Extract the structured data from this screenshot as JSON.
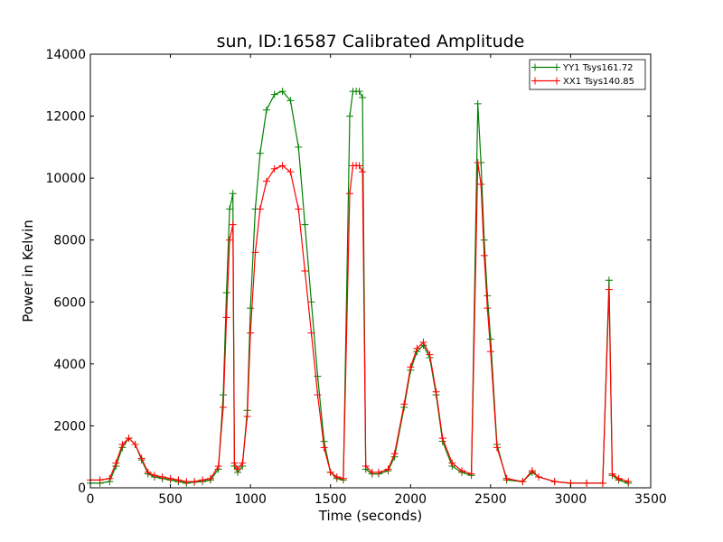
{
  "chart_data": {
    "type": "line",
    "title": "sun, ID:16587 Calibrated Amplitude",
    "xlabel": "Time (seconds)",
    "ylabel": "Power in Kelvin",
    "xlim": [
      0,
      3500
    ],
    "ylim": [
      0,
      14000
    ],
    "xticks": [
      0,
      500,
      1000,
      1500,
      2000,
      2500,
      3000,
      3500
    ],
    "yticks": [
      0,
      2000,
      4000,
      6000,
      8000,
      10000,
      12000,
      14000
    ],
    "legend_position": "top-right",
    "series": [
      {
        "name": "YY1 Tsys161.72",
        "color": "#008000",
        "marker": "plus",
        "x": [
          0,
          60,
          120,
          160,
          200,
          240,
          280,
          320,
          360,
          400,
          450,
          500,
          550,
          600,
          650,
          700,
          750,
          800,
          830,
          850,
          870,
          890,
          900,
          920,
          950,
          980,
          1000,
          1030,
          1060,
          1100,
          1150,
          1200,
          1250,
          1300,
          1340,
          1380,
          1420,
          1460,
          1500,
          1540,
          1580,
          1620,
          1640,
          1660,
          1680,
          1700,
          1720,
          1760,
          1800,
          1860,
          1900,
          1960,
          2000,
          2040,
          2080,
          2120,
          2160,
          2200,
          2260,
          2320,
          2380,
          2420,
          2440,
          2460,
          2480,
          2500,
          2540,
          2600,
          2700,
          2760,
          2800,
          2900,
          3000,
          3100,
          3200,
          3240,
          3260,
          3300,
          3360
        ],
        "y": [
          150,
          150,
          200,
          700,
          1300,
          1600,
          1400,
          900,
          450,
          350,
          300,
          250,
          200,
          150,
          180,
          200,
          250,
          600,
          3000,
          6300,
          9000,
          9500,
          700,
          500,
          700,
          2500,
          5800,
          9000,
          10800,
          12200,
          12700,
          12800,
          12500,
          11000,
          8500,
          6000,
          3600,
          1500,
          500,
          300,
          250,
          12000,
          12800,
          12800,
          12800,
          12600,
          600,
          450,
          450,
          550,
          1000,
          2600,
          3800,
          4400,
          4600,
          4200,
          3000,
          1500,
          700,
          500,
          400,
          12400,
          10500,
          8000,
          6200,
          4800,
          1400,
          250,
          200,
          500,
          350,
          200,
          150,
          150,
          150,
          6700,
          400,
          250,
          150
        ]
      },
      {
        "name": "XX1 Tsys140.85",
        "color": "#ff0000",
        "marker": "plus",
        "x": [
          0,
          60,
          120,
          160,
          200,
          240,
          280,
          320,
          360,
          400,
          450,
          500,
          550,
          600,
          650,
          700,
          750,
          800,
          830,
          850,
          870,
          890,
          900,
          920,
          950,
          980,
          1000,
          1030,
          1060,
          1100,
          1150,
          1200,
          1250,
          1300,
          1340,
          1380,
          1420,
          1460,
          1500,
          1540,
          1580,
          1620,
          1640,
          1660,
          1680,
          1700,
          1720,
          1760,
          1800,
          1860,
          1900,
          1960,
          2000,
          2040,
          2080,
          2120,
          2160,
          2200,
          2260,
          2320,
          2380,
          2420,
          2440,
          2460,
          2480,
          2500,
          2540,
          2600,
          2700,
          2760,
          2800,
          2900,
          3000,
          3100,
          3200,
          3240,
          3260,
          3300,
          3360
        ],
        "y": [
          250,
          250,
          300,
          800,
          1400,
          1600,
          1400,
          950,
          500,
          400,
          350,
          300,
          250,
          200,
          200,
          250,
          300,
          700,
          2600,
          5500,
          8000,
          8500,
          800,
          600,
          800,
          2300,
          5000,
          7600,
          9000,
          9900,
          10300,
          10400,
          10200,
          9000,
          7000,
          5000,
          3000,
          1300,
          500,
          350,
          300,
          9500,
          10400,
          10400,
          10400,
          10200,
          700,
          500,
          500,
          600,
          1100,
          2700,
          3900,
          4500,
          4700,
          4300,
          3100,
          1600,
          800,
          550,
          450,
          10500,
          9800,
          7500,
          5800,
          4400,
          1300,
          300,
          200,
          550,
          350,
          200,
          150,
          150,
          150,
          6400,
          450,
          300,
          200
        ]
      }
    ]
  }
}
